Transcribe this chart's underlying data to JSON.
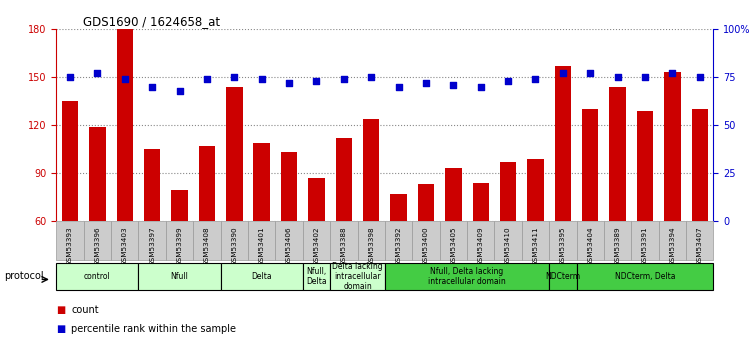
{
  "title": "GDS1690 / 1624658_at",
  "samples": [
    "GSM53393",
    "GSM53396",
    "GSM53403",
    "GSM53397",
    "GSM53399",
    "GSM53408",
    "GSM53390",
    "GSM53401",
    "GSM53406",
    "GSM53402",
    "GSM53388",
    "GSM53398",
    "GSM53392",
    "GSM53400",
    "GSM53405",
    "GSM53409",
    "GSM53410",
    "GSM53411",
    "GSM53395",
    "GSM53404",
    "GSM53389",
    "GSM53391",
    "GSM53394",
    "GSM53407"
  ],
  "counts": [
    135,
    119,
    180,
    105,
    79,
    107,
    144,
    109,
    103,
    87,
    112,
    124,
    77,
    83,
    93,
    84,
    97,
    99,
    157,
    130,
    144,
    129,
    153,
    130
  ],
  "percentiles": [
    75,
    77,
    74,
    70,
    68,
    74,
    75,
    74,
    72,
    73,
    74,
    75,
    70,
    72,
    71,
    70,
    73,
    74,
    77,
    77,
    75,
    75,
    77,
    75
  ],
  "ylim_left": [
    60,
    180
  ],
  "ylim_right": [
    0,
    100
  ],
  "yticks_left": [
    60,
    90,
    120,
    150,
    180
  ],
  "yticks_right": [
    0,
    25,
    50,
    75,
    100
  ],
  "ytick_right_labels": [
    "0",
    "25",
    "50",
    "75",
    "100%"
  ],
  "bar_color": "#cc0000",
  "dot_color": "#0000cc",
  "groups": [
    {
      "label": "control",
      "start": 0,
      "end": 2,
      "color": "#ccffcc"
    },
    {
      "label": "Nfull",
      "start": 3,
      "end": 5,
      "color": "#ccffcc"
    },
    {
      "label": "Delta",
      "start": 6,
      "end": 8,
      "color": "#ccffcc"
    },
    {
      "label": "Nfull,\nDelta",
      "start": 9,
      "end": 9,
      "color": "#ccffcc"
    },
    {
      "label": "Delta lacking\nintracellular\ndomain",
      "start": 10,
      "end": 11,
      "color": "#ccffcc"
    },
    {
      "label": "Nfull, Delta lacking\nintracellular domain",
      "start": 12,
      "end": 17,
      "color": "#44cc44"
    },
    {
      "label": "NDCterm",
      "start": 18,
      "end": 18,
      "color": "#44cc44"
    },
    {
      "label": "NDCterm, Delta",
      "start": 19,
      "end": 23,
      "color": "#44cc44"
    }
  ],
  "protocol_label": "protocol",
  "legend_items": [
    {
      "color": "#cc0000",
      "label": "count"
    },
    {
      "color": "#0000cc",
      "label": "percentile rank within the sample"
    }
  ],
  "bg_color": "#ffffff",
  "plot_bg_color": "#ffffff",
  "grid_color": "#888888",
  "left_tick_color": "#cc0000",
  "right_tick_color": "#0000cc",
  "xticklabel_bg": "#cccccc"
}
